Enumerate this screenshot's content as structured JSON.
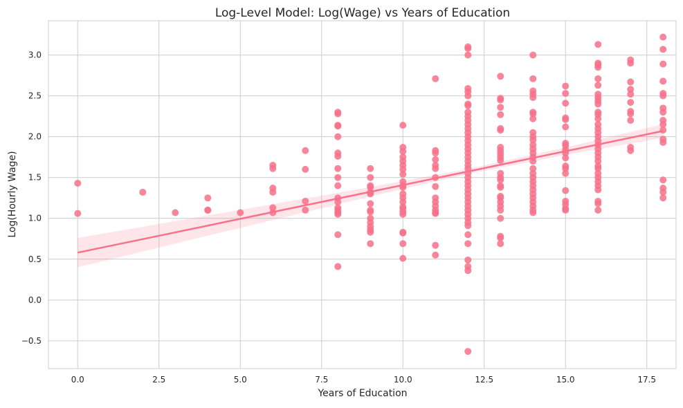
{
  "chart_data": {
    "type": "scatter",
    "title": "Log-Level Model: Log(Wage) vs Years of Education",
    "xlabel": "Years of Education",
    "ylabel": "Log(Hourly Wage)",
    "xlim": [
      -0.9,
      18.4
    ],
    "ylim": [
      -0.84,
      3.42
    ],
    "grid": true,
    "x_ticks": [
      0,
      2.5,
      5,
      7.5,
      10,
      12.5,
      15,
      17.5
    ],
    "x_tick_labels": [
      "0.0",
      "2.5",
      "5.0",
      "7.5",
      "10.0",
      "12.5",
      "15.0",
      "17.5"
    ],
    "y_ticks": [
      -0.5,
      0,
      0.5,
      1,
      1.5,
      2,
      2.5,
      3
    ],
    "y_tick_labels": [
      "−0.5",
      "0.0",
      "0.5",
      "1.0",
      "1.5",
      "2.0",
      "2.5",
      "3.0"
    ],
    "color": "#f77189",
    "band_color": "#f7718933",
    "points_by_x": [
      {
        "x": 0,
        "y": [
          1.43,
          1.06
        ]
      },
      {
        "x": 2,
        "y": [
          1.32
        ]
      },
      {
        "x": 3,
        "y": [
          1.07
        ]
      },
      {
        "x": 4,
        "y": [
          1.25,
          1.1,
          1.1
        ]
      },
      {
        "x": 5,
        "y": [
          1.07
        ]
      },
      {
        "x": 6,
        "y": [
          1.65,
          1.61,
          1.37,
          1.32,
          1.13,
          1.07
        ]
      },
      {
        "x": 7,
        "y": [
          1.83,
          1.6,
          1.21,
          1.1
        ]
      },
      {
        "x": 8,
        "y": [
          2.3,
          2.28,
          2.14,
          2.13,
          2.0,
          1.8,
          1.76,
          1.61,
          1.5,
          1.4,
          1.25,
          1.2,
          1.13,
          1.1,
          1.07,
          1.05,
          0.8,
          0.41
        ]
      },
      {
        "x": 9,
        "y": [
          1.61,
          1.5,
          1.4,
          1.38,
          1.32,
          1.3,
          1.18,
          1.1,
          1.08,
          1.0,
          0.95,
          0.9,
          0.86,
          0.83,
          0.69
        ]
      },
      {
        "x": 10,
        "y": [
          2.14,
          1.87,
          1.82,
          1.75,
          1.7,
          1.65,
          1.6,
          1.54,
          1.45,
          1.4,
          1.38,
          1.3,
          1.25,
          1.2,
          1.14,
          1.12,
          1.08,
          1.05,
          0.83,
          0.82,
          0.69,
          0.51
        ]
      },
      {
        "x": 11,
        "y": [
          2.71,
          1.83,
          1.8,
          1.72,
          1.65,
          1.61,
          1.5,
          1.39,
          1.25,
          1.2,
          1.15,
          1.1,
          1.07,
          1.06,
          0.67,
          0.55
        ]
      },
      {
        "x": 12,
        "y": [
          3.1,
          3.08,
          3.0,
          2.59,
          2.55,
          2.5,
          2.4,
          2.38,
          2.3,
          2.25,
          2.2,
          2.15,
          2.1,
          2.05,
          2.0,
          1.95,
          1.9,
          1.85,
          1.8,
          1.75,
          1.7,
          1.65,
          1.61,
          1.55,
          1.5,
          1.45,
          1.4,
          1.35,
          1.3,
          1.25,
          1.2,
          1.15,
          1.1,
          1.05,
          1.0,
          0.95,
          0.91,
          0.8,
          0.69,
          0.49,
          0.41,
          0.36,
          -0.63
        ]
      },
      {
        "x": 13,
        "y": [
          2.74,
          2.47,
          2.45,
          2.36,
          2.27,
          2.1,
          2.08,
          1.87,
          1.83,
          1.79,
          1.75,
          1.71,
          1.55,
          1.5,
          1.47,
          1.4,
          1.38,
          1.27,
          1.25,
          1.2,
          1.15,
          1.1,
          1.0,
          0.78,
          0.76,
          0.69
        ]
      },
      {
        "x": 14,
        "y": [
          3.0,
          2.71,
          2.56,
          2.52,
          2.48,
          2.3,
          2.28,
          2.22,
          2.05,
          2.0,
          1.96,
          1.9,
          1.85,
          1.8,
          1.75,
          1.7,
          1.61,
          1.55,
          1.5,
          1.45,
          1.4,
          1.35,
          1.3,
          1.25,
          1.2,
          1.15,
          1.1,
          1.07
        ]
      },
      {
        "x": 15,
        "y": [
          2.62,
          2.53,
          2.41,
          2.23,
          2.21,
          2.12,
          1.92,
          1.89,
          1.84,
          1.8,
          1.74,
          1.64,
          1.61,
          1.55,
          1.34,
          1.21,
          1.17,
          1.12,
          1.1
        ]
      },
      {
        "x": 16,
        "y": [
          3.13,
          2.9,
          2.88,
          2.85,
          2.71,
          2.63,
          2.52,
          2.48,
          2.44,
          2.4,
          2.3,
          2.27,
          2.22,
          2.15,
          2.1,
          2.05,
          2.0,
          1.95,
          1.9,
          1.85,
          1.8,
          1.75,
          1.7,
          1.64,
          1.61,
          1.55,
          1.5,
          1.45,
          1.4,
          1.35,
          1.21,
          1.18,
          1.1
        ]
      },
      {
        "x": 17,
        "y": [
          2.94,
          2.9,
          2.67,
          2.58,
          2.52,
          2.42,
          2.31,
          2.28,
          2.2,
          1.87,
          1.83
        ]
      },
      {
        "x": 18,
        "y": [
          3.22,
          3.07,
          2.89,
          2.68,
          2.53,
          2.5,
          2.35,
          2.3,
          2.2,
          2.15,
          2.08,
          1.97,
          1.93,
          1.47,
          1.37,
          1.32,
          1.25
        ]
      }
    ],
    "regression": {
      "x": [
        0,
        3,
        6,
        9,
        12,
        15,
        18
      ],
      "y": [
        0.58,
        0.828,
        1.077,
        1.325,
        1.574,
        1.822,
        2.07
      ],
      "ci_lower": [
        0.4,
        0.691,
        0.98,
        1.267,
        1.543,
        1.776,
        1.987
      ],
      "ci_upper": [
        0.76,
        0.965,
        1.174,
        1.383,
        1.605,
        1.868,
        2.153
      ]
    }
  }
}
